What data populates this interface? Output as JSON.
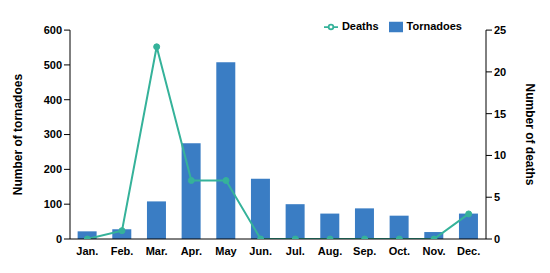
{
  "chart_data": {
    "type": "bar",
    "categories": [
      "Jan.",
      "Feb.",
      "Mar.",
      "Apr.",
      "May",
      "Jun.",
      "Jul.",
      "Aug.",
      "Sep.",
      "Oct.",
      "Nov.",
      "Dec."
    ],
    "y_label": "Number of tornadoes",
    "y2_label": "Number of deaths",
    "ylim": [
      0,
      600
    ],
    "yticks": [
      0,
      100,
      200,
      300,
      400,
      500,
      600
    ],
    "y2lim": [
      0,
      25
    ],
    "y2ticks": [
      0,
      5,
      10,
      15,
      20,
      25
    ],
    "grid": false,
    "legend": "top-right",
    "series": [
      {
        "name": "Tornadoes",
        "type": "bar",
        "color": "#3a7dc4",
        "values": [
          22,
          28,
          108,
          275,
          508,
          173,
          100,
          73,
          88,
          67,
          20,
          73
        ]
      },
      {
        "name": "Deaths",
        "type": "line",
        "axis": "y2",
        "color": "#35b29a",
        "marker": "circle",
        "values": [
          0,
          1,
          23,
          7,
          7,
          0,
          0,
          0,
          0,
          0,
          0,
          3
        ]
      }
    ]
  }
}
